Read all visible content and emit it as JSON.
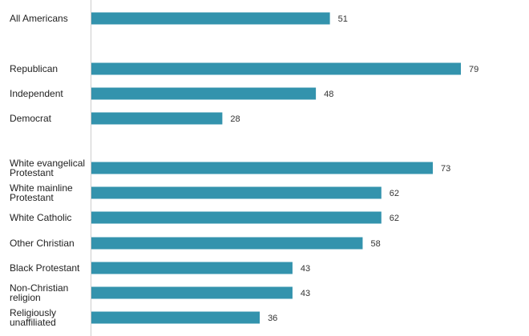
{
  "chart_data": {
    "type": "bar",
    "orientation": "horizontal",
    "title": "",
    "xlabel": "",
    "ylabel": "",
    "xlim": [
      0,
      100
    ],
    "grid": false,
    "legend": "none",
    "bar_color": "#3393ad",
    "categories": [
      "All Americans",
      "Republican",
      "Independent",
      "Democrat",
      "White evangelical Protestant",
      "White mainline Protestant",
      "White Catholic",
      "Other Christian",
      "Black Protestant",
      "Non-Christian religion",
      "Religiously unaffiliated"
    ],
    "label_lines": [
      [
        "All Americans"
      ],
      [
        "Republican"
      ],
      [
        "Independent"
      ],
      [
        "Democrat"
      ],
      [
        "White evangelical",
        "Protestant"
      ],
      [
        "White mainline",
        "Protestant"
      ],
      [
        "White Catholic"
      ],
      [
        "Other Christian"
      ],
      [
        "Black Protestant"
      ],
      [
        "Non-Christian",
        "religion"
      ],
      [
        "Religiously",
        "unaffiliated"
      ]
    ],
    "values": [
      51,
      79,
      48,
      28,
      73,
      62,
      62,
      58,
      43,
      43,
      36
    ]
  }
}
